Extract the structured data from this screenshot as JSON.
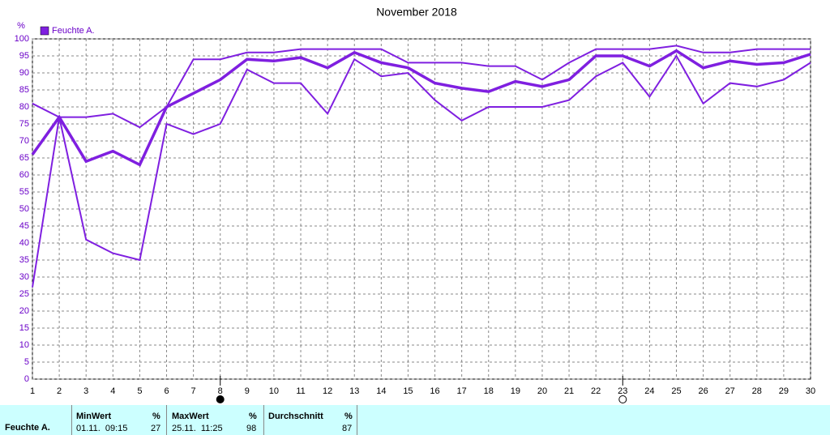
{
  "chart_data": {
    "type": "line",
    "title": "November 2018",
    "ylabel": "%",
    "x": [
      1,
      2,
      3,
      4,
      5,
      6,
      7,
      8,
      9,
      10,
      11,
      12,
      13,
      14,
      15,
      16,
      17,
      18,
      19,
      20,
      21,
      22,
      23,
      24,
      25,
      26,
      27,
      28,
      29,
      30
    ],
    "xlim": [
      1,
      30
    ],
    "xticks": [
      1,
      2,
      3,
      4,
      5,
      6,
      7,
      8,
      9,
      10,
      11,
      12,
      13,
      14,
      15,
      16,
      17,
      18,
      19,
      20,
      21,
      22,
      23,
      24,
      25,
      26,
      27,
      28,
      29,
      30
    ],
    "ylim": [
      0,
      100
    ],
    "yticks": [
      0,
      5,
      10,
      15,
      20,
      25,
      30,
      35,
      40,
      45,
      50,
      55,
      60,
      65,
      70,
      75,
      80,
      85,
      90,
      95,
      100
    ],
    "grid": true,
    "series": [
      {
        "name": "Feuchte A.",
        "color": "#7f1fe0",
        "values": [
          66,
          77,
          64,
          67,
          63,
          80,
          84,
          88,
          94,
          93.5,
          94.5,
          91.5,
          96,
          93,
          91.5,
          87,
          85.5,
          84.5,
          87.5,
          86,
          88,
          95,
          95,
          92,
          96.5,
          91.5,
          93.5,
          92.5,
          93,
          95.5
        ],
        "max_values": [
          81,
          77,
          77,
          78,
          74,
          80,
          94,
          94,
          96,
          96,
          97,
          97,
          97,
          97,
          93,
          93,
          93,
          92,
          92,
          88,
          93,
          97,
          97,
          97,
          98,
          96,
          96,
          97,
          97,
          97
        ],
        "min_values": [
          27,
          77,
          41,
          37,
          35,
          75,
          72,
          75,
          91,
          87,
          87,
          78,
          94,
          89,
          90,
          82,
          76,
          80,
          80,
          80,
          82,
          89,
          93,
          83,
          95,
          81,
          87,
          86,
          88,
          93
        ]
      }
    ],
    "markers": [
      {
        "x": 8,
        "filled": true
      },
      {
        "x": 23,
        "filled": false
      }
    ]
  },
  "table": {
    "row_label": "Feuchte A.",
    "columns": [
      {
        "header": "MinWert",
        "unit": "%",
        "date": "01.11.  09:15",
        "value": "27"
      },
      {
        "header": "MaxWert",
        "unit": "%",
        "date": "25.11.  11:25",
        "value": "98"
      },
      {
        "header": "Durchschnitt",
        "unit": "%",
        "value": "87"
      }
    ]
  }
}
